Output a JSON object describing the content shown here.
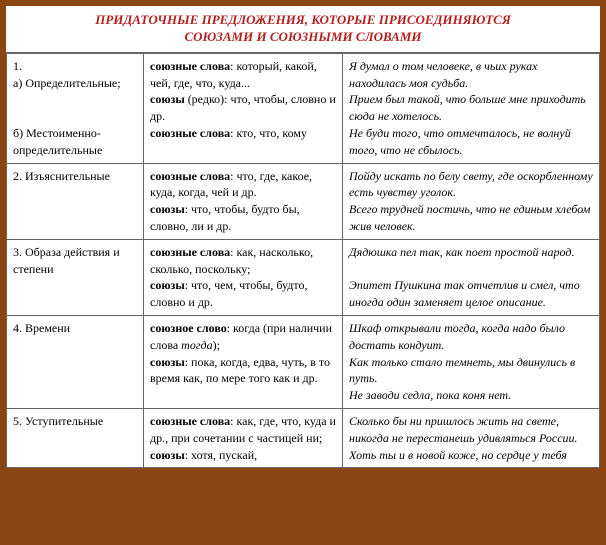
{
  "title_line1": "ПРИДАТОЧНЫЕ ПРЕДЛОЖЕНИЯ, КОТОРЫЕ ПРИСОЕДИНЯЮТСЯ",
  "title_line2": "СОЮЗАМИ И  СОЮЗНЫМИ СЛОВАМИ",
  "rows": [
    {
      "col1_a": "1.",
      "col1_b": "а) Определительные;",
      "col1_c": "б) Местоименно-определительные",
      "col2_a_label": "союзные слова",
      "col2_a_text": ": который, какой, чей, где, что, куда...",
      "col2_b_label": "союзы",
      "col2_b_text": " (редко): что, чтобы, словно и др.",
      "col2_c_label": "союзные слова",
      "col2_c_text": ": кто, что, кому",
      "col3_a": "Я думал о том человеке, в чьих руках находилась моя судьба.",
      "col3_b": "Прием был такой, что больше мне приходить сюда не хотелось.",
      "col3_c": "Не буди того, что отмечталось, не волнуй того, что не сбылось."
    },
    {
      "col1": "2. Изъяснительные",
      "col2_a_label": "союзные слова",
      "col2_a_text": ": что, где, какое, куда, когда, чей и др.",
      "col2_b_label": "союзы",
      "col2_b_text": ": что, чтобы, будто бы, словно, ли и др.",
      "col3_a": "Пойду искать по белу свету, где оскорбленному есть чувству уголок.",
      "col3_b": " Всего трудней постичь, что не единым хлебом жив человек."
    },
    {
      "col1": "3. Образа действия и степени",
      "col2_a_label": "союзные слова",
      "col2_a_text": ": как, насколько, сколько, поскольку;",
      "col2_b_label": "союзы",
      "col2_b_text": ": что, чем, чтобы, будто, словно и др.",
      "col3_a": "Дядюшка пел так, как поет простой народ.",
      "col3_b": "Эпитет Пушкина так отчетлив и смел, что иногда один заменяет целое описание."
    },
    {
      "col1": "4. Времени",
      "col2_a_label": "союзное слово",
      "col2_a_text1": ": когда (при наличии слова ",
      "col2_a_ital": "тогда",
      "col2_a_text2": ");",
      "col2_b_label": "союзы",
      "col2_b_text": ": пока, когда, едва, чуть, в то время как, по мере того как и др.",
      "col3_a": "Шкаф открывали тогда, когда надо было достать кондуит.",
      "col3_b": "  Как только стало темнеть, мы двинулись в путь.",
      "col3_c": " Не заводи седла, пока коня нет."
    },
    {
      "col1": "5. Уступительные",
      "col2_a_label": "союзные слова",
      "col2_a_text": ": как, где, что, куда и др., при сочетании с частицей ни;",
      "col2_b_label": "союзы",
      "col2_b_text": ": хотя, пускай,",
      "col3_a": "Сколько бы ни пришлось жить на свете, никогда не перестанешь удивляться России.",
      "col3_b": "Хоть ты и в новой коже, но сердце у тебя"
    }
  ]
}
